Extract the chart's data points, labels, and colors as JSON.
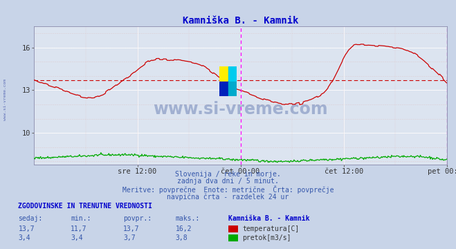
{
  "title": "Kamniška B. - Kamnik",
  "title_color": "#0000cc",
  "bg_color": "#c8d4e8",
  "plot_bg_color": "#dce4f0",
  "grid_color_major": "#ffffff",
  "grid_color_minor": "#e8c8c8",
  "xlabel_ticks": [
    "sre 12:00",
    "čet 00:00",
    "čet 12:00",
    "pet 00:00"
  ],
  "xlabel_tick_positions": [
    0.25,
    0.5,
    0.75,
    1.0
  ],
  "ylim": [
    7.8,
    17.5
  ],
  "yticks": [
    10,
    13,
    16
  ],
  "temp_color": "#cc0000",
  "flow_color": "#00aa00",
  "avg_value": 13.7,
  "watermark_text": "www.si-vreme.com",
  "subtitle_lines": [
    "Slovenija / reke in morje.",
    "zadnja dva dni / 5 minut.",
    "Meritve: povprečne  Enote: metrične  Črta: povprečje",
    "navpična črta - razdelek 24 ur"
  ],
  "table_header": "ZGODOVINSKE IN TRENUTNE VREDNOSTI",
  "table_cols": [
    "sedaj:",
    "min.:",
    "povpr.:",
    "maks.:",
    "Kamniška B. - Kamnik"
  ],
  "table_row1": [
    "13,7",
    "11,7",
    "13,7",
    "16,2",
    "temperatura[C]"
  ],
  "table_row2": [
    "3,4",
    "3,4",
    "3,7",
    "3,8",
    "pretok[m3/s]"
  ],
  "temp_color_swatch": "#cc0000",
  "flow_color_swatch": "#00aa00",
  "n_points": 576
}
